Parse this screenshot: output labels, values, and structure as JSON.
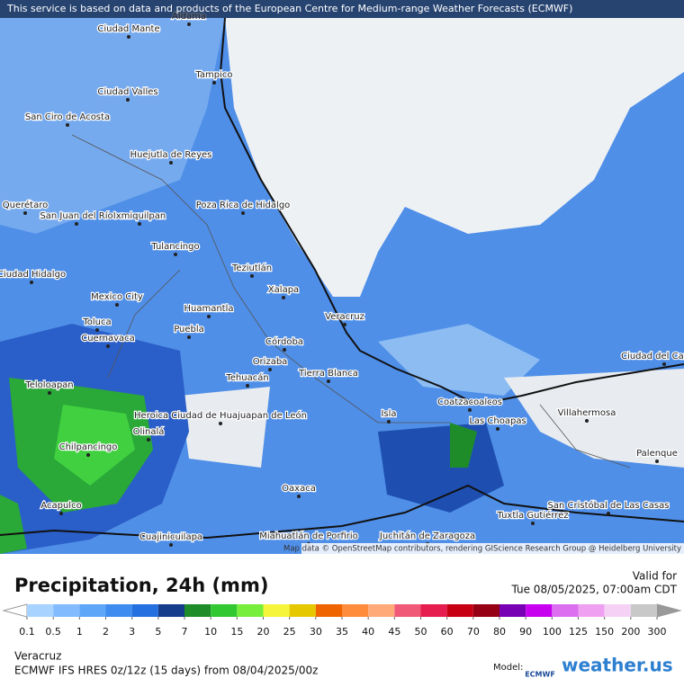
{
  "banner": "This service is based on data and products of the European Centre for Medium-range Weather Forecasts (ECMWF)",
  "attribution": "Map data © OpenStreetMap contributors, rendering GIScience Research Group @ Heidelberg University",
  "cities": [
    "Ciudad Mante",
    "Aldama",
    "Tampico",
    "Ciudad Valles",
    "San Ciro de Acosta",
    "Huejutla de Reyes",
    "Poza Rica de Hidalgo",
    "Querétaro",
    "San Juan del Río",
    "Ixmiquilpan",
    "Tulancingo",
    "Ciudad Hidalgo",
    "Teziutlán",
    "Xalapa",
    "Mexico City",
    "Huamantla",
    "Veracruz",
    "Toluca",
    "Puebla",
    "Cuernavaca",
    "Córdoba",
    "Orizaba",
    "Tierra Blanca",
    "Tehuacán",
    "Teloloapan",
    "Heroica Ciudad de Huajuapan de León",
    "Coatzacoalcos",
    "Isla",
    "Las Choapas",
    "Villahermosa",
    "Ciudad del Carmen",
    "Chilpancingo",
    "Olinalá",
    "Palenque",
    "Oaxaca",
    "Acapulco",
    "Cuajinicuilapa",
    "Miahuatlán de Porfirio",
    "Juchitán de Zaragoza",
    "Tuxtla Gutiérrez",
    "San Cristóbal de Las Casas"
  ],
  "title": "Precipitation, 24h (mm)",
  "valid_label": "Valid for",
  "valid_time": "Tue 08/05/2025, 07:00am CDT",
  "legend": {
    "values": [
      0.1,
      0.5,
      1,
      2,
      3,
      5,
      7,
      10,
      15,
      20,
      25,
      30,
      35,
      40,
      45,
      50,
      60,
      70,
      80,
      90,
      100,
      125,
      150,
      200,
      300
    ],
    "colors": [
      "#a8d2ff",
      "#82bcff",
      "#5ea6f7",
      "#3f8cf0",
      "#2470e0",
      "#163c8c",
      "#1f8c2a",
      "#32c832",
      "#78ee3c",
      "#f5f53c",
      "#e6c800",
      "#f06400",
      "#ff8c3c",
      "#ffaa78",
      "#f05a78",
      "#e61e50",
      "#c80014",
      "#960014",
      "#7800b4",
      "#c800f0",
      "#dc6ef0",
      "#f0a0f0",
      "#f5d2f5",
      "#c8c8c8"
    ]
  },
  "location": "Veracruz",
  "model_line": "ECMWF IFS HRES 0z/12z (15 days) from 08/04/2025/00z",
  "model_label": "Model:",
  "model_logo": "ECMWF",
  "brand": "weather.us"
}
